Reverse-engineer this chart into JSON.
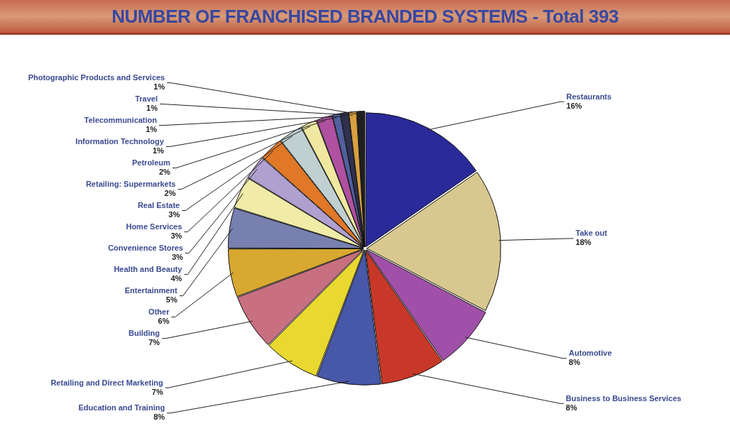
{
  "chart_data": {
    "type": "pie",
    "title": "NUMBER OF FRANCHISED BRANDED SYSTEMS - Total 393",
    "categories": [
      "Restaurants",
      "Take out",
      "Automotive",
      "Business to Business Services",
      "Education and Training",
      "Retailing and Direct Marketing",
      "Building",
      "Other",
      "Entertainment",
      "Health and Beauty",
      "Convenience Stores",
      "Home Services",
      "Real Estate",
      "Retailing: Supermarkets",
      "Petroleum",
      "Information Technology",
      "Telecommunication",
      "Travel",
      "Photographic Products and Services"
    ],
    "values": [
      16,
      18,
      8,
      8,
      8,
      7,
      7,
      6,
      5,
      4,
      3,
      3,
      3,
      2,
      2,
      1,
      1,
      1,
      1
    ],
    "value_labels": [
      "16%",
      "18%",
      "8%",
      "8%",
      "8%",
      "7%",
      "7%",
      "6%",
      "5%",
      "4%",
      "3%",
      "3%",
      "3%",
      "2%",
      "2%",
      "1%",
      "1%",
      "1%",
      "1%"
    ],
    "colors": [
      "#2a2a9a",
      "#d8c890",
      "#a050a8",
      "#c83828",
      "#4858a8",
      "#e8d830",
      "#c87080",
      "#d8a830",
      "#7880b0",
      "#f0eca8",
      "#b0a0d0",
      "#e07828",
      "#c0d0d0",
      "#f0e8a0",
      "#b050a0",
      "#5060a0",
      "#303050",
      "#d8a040",
      "#202020"
    ],
    "legend": false
  }
}
